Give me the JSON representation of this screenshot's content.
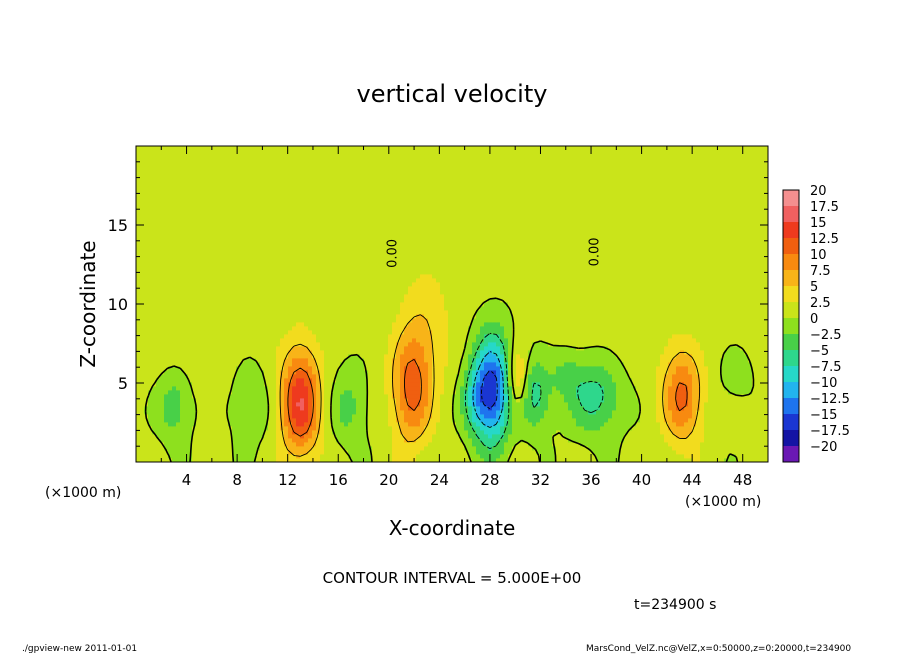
{
  "chart_data": {
    "type": "heatmap",
    "title": "vertical velocity",
    "xlabel": "X-coordinate",
    "ylabel": "Z-coordinate",
    "x_unit_label": "(×1000 m)",
    "y_unit_label": "(×1000 m)",
    "xlim": [
      0,
      50
    ],
    "ylim": [
      0,
      20
    ],
    "x_ticks": [
      4,
      8,
      12,
      16,
      20,
      24,
      28,
      32,
      36,
      40,
      44,
      48
    ],
    "y_ticks": [
      5,
      10,
      15
    ],
    "contour_label": "0.00",
    "contour_interval": "CONTOUR INTERVAL = 5.000E+00",
    "time_label": "t=234900 s",
    "colorbar": {
      "labels": [
        "20",
        "17.5",
        "15",
        "12.5",
        "10",
        "7.5",
        "5",
        "2.5",
        "0",
        "−2.5",
        "−5",
        "−7.5",
        "−10",
        "−12.5",
        "−15",
        "−17.5",
        "−20"
      ],
      "colors": [
        "#f48f8f",
        "#f06060",
        "#ee3a1e",
        "#f05f10",
        "#f88a10",
        "#f8b418",
        "#f2dc1e",
        "#cae41a",
        "#8ee01e",
        "#48d048",
        "#2ed78c",
        "#26d8c8",
        "#22b4ee",
        "#1e74ee",
        "#1a36d2",
        "#1414a4",
        "#6a18b4"
      ]
    },
    "features": [
      {
        "x": 13.0,
        "z": 3.8,
        "sx": 1.1,
        "sz": 2.4,
        "w": 14
      },
      {
        "x": 21.8,
        "z": 4.6,
        "sx": 1.1,
        "sz": 2.5,
        "w": 10
      },
      {
        "x": 43.2,
        "z": 4.2,
        "sx": 1.1,
        "sz": 2.1,
        "w": 10
      },
      {
        "x": 30.2,
        "z": 5.2,
        "sx": 0.6,
        "sz": 1.4,
        "w": 7
      },
      {
        "x": 28.2,
        "z": 4.6,
        "sx": 1.0,
        "sz": 2.4,
        "w": -17
      },
      {
        "x": 26.8,
        "z": 4.0,
        "sx": 0.8,
        "sz": 1.6,
        "w": -6
      },
      {
        "x": 31.5,
        "z": 4.3,
        "sx": 0.9,
        "sz": 1.6,
        "w": -7
      },
      {
        "x": 36.3,
        "z": 4.2,
        "sx": 1.6,
        "sz": 1.8,
        "w": -7
      },
      {
        "x": 3.0,
        "z": 3.6,
        "sx": 1.0,
        "sz": 1.6,
        "w": -5
      },
      {
        "x": 9.0,
        "z": 3.8,
        "sx": 1.2,
        "sz": 2.0,
        "w": -3
      },
      {
        "x": 16.8,
        "z": 3.5,
        "sx": 1.0,
        "sz": 1.8,
        "w": -4
      },
      {
        "x": 34.0,
        "z": 5.5,
        "sx": 0.8,
        "sz": 1.0,
        "w": -3
      },
      {
        "x": 47.5,
        "z": 5.5,
        "sx": 1.0,
        "sz": 1.2,
        "w": -2
      },
      {
        "x": 5.0,
        "z": 8.0,
        "sx": 3.0,
        "sz": 2.5,
        "w": 1.5
      },
      {
        "x": 23.0,
        "z": 8.5,
        "sx": 1.5,
        "sz": 3.0,
        "w": 3
      },
      {
        "x": 38.0,
        "z": 9.0,
        "sx": 2.5,
        "sz": 3.0,
        "w": 1.2
      }
    ],
    "grid": false
  },
  "footer": {
    "left": "./gpview-new   2011-01-01",
    "right": "MarsCond_VelZ.nc@VelZ,x=0:50000,z=0:20000,t=234900"
  }
}
